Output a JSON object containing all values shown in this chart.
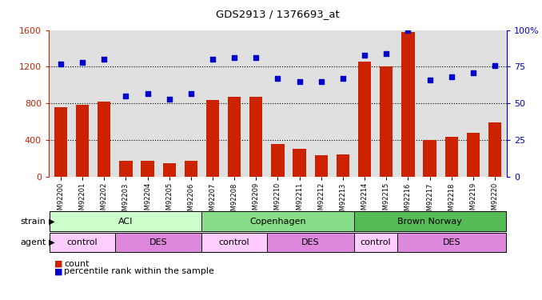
{
  "title": "GDS2913 / 1376693_at",
  "samples": [
    "GSM92200",
    "GSM92201",
    "GSM92202",
    "GSM92203",
    "GSM92204",
    "GSM92205",
    "GSM92206",
    "GSM92207",
    "GSM92208",
    "GSM92209",
    "GSM92210",
    "GSM92211",
    "GSM92212",
    "GSM92213",
    "GSM92214",
    "GSM92215",
    "GSM92216",
    "GSM92217",
    "GSM92218",
    "GSM92219",
    "GSM92220"
  ],
  "counts": [
    760,
    790,
    820,
    175,
    175,
    150,
    175,
    840,
    870,
    870,
    360,
    310,
    240,
    250,
    1260,
    1200,
    1580,
    400,
    440,
    480,
    590
  ],
  "percentiles": [
    77,
    78,
    80,
    55,
    57,
    53,
    57,
    80,
    81,
    81,
    67,
    65,
    65,
    67,
    83,
    84,
    100,
    66,
    68,
    71,
    76
  ],
  "bar_color": "#cc2200",
  "dot_color": "#0000cc",
  "ylim_left": [
    0,
    1600
  ],
  "ylim_right": [
    0,
    100
  ],
  "yticks_left": [
    0,
    400,
    800,
    1200,
    1600
  ],
  "yticks_right": [
    0,
    25,
    50,
    75,
    100
  ],
  "strain_groups": [
    {
      "label": "ACI",
      "start": 0,
      "end": 6,
      "color": "#ccffcc"
    },
    {
      "label": "Copenhagen",
      "start": 7,
      "end": 13,
      "color": "#88dd88"
    },
    {
      "label": "Brown Norway",
      "start": 14,
      "end": 20,
      "color": "#55bb55"
    }
  ],
  "agent_groups": [
    {
      "label": "control",
      "start": 0,
      "end": 2,
      "color": "#ffccff"
    },
    {
      "label": "DES",
      "start": 3,
      "end": 6,
      "color": "#dd88dd"
    },
    {
      "label": "control",
      "start": 7,
      "end": 9,
      "color": "#ffccff"
    },
    {
      "label": "DES",
      "start": 10,
      "end": 13,
      "color": "#dd88dd"
    },
    {
      "label": "control",
      "start": 14,
      "end": 15,
      "color": "#ffccff"
    },
    {
      "label": "DES",
      "start": 16,
      "end": 20,
      "color": "#dd88dd"
    }
  ],
  "legend_count_color": "#cc2200",
  "legend_dot_color": "#0000cc",
  "strain_label": "strain",
  "agent_label": "agent",
  "legend_count_label": "count",
  "legend_dot_label": "percentile rank within the sample",
  "plot_bg_color": "#e0e0e0"
}
